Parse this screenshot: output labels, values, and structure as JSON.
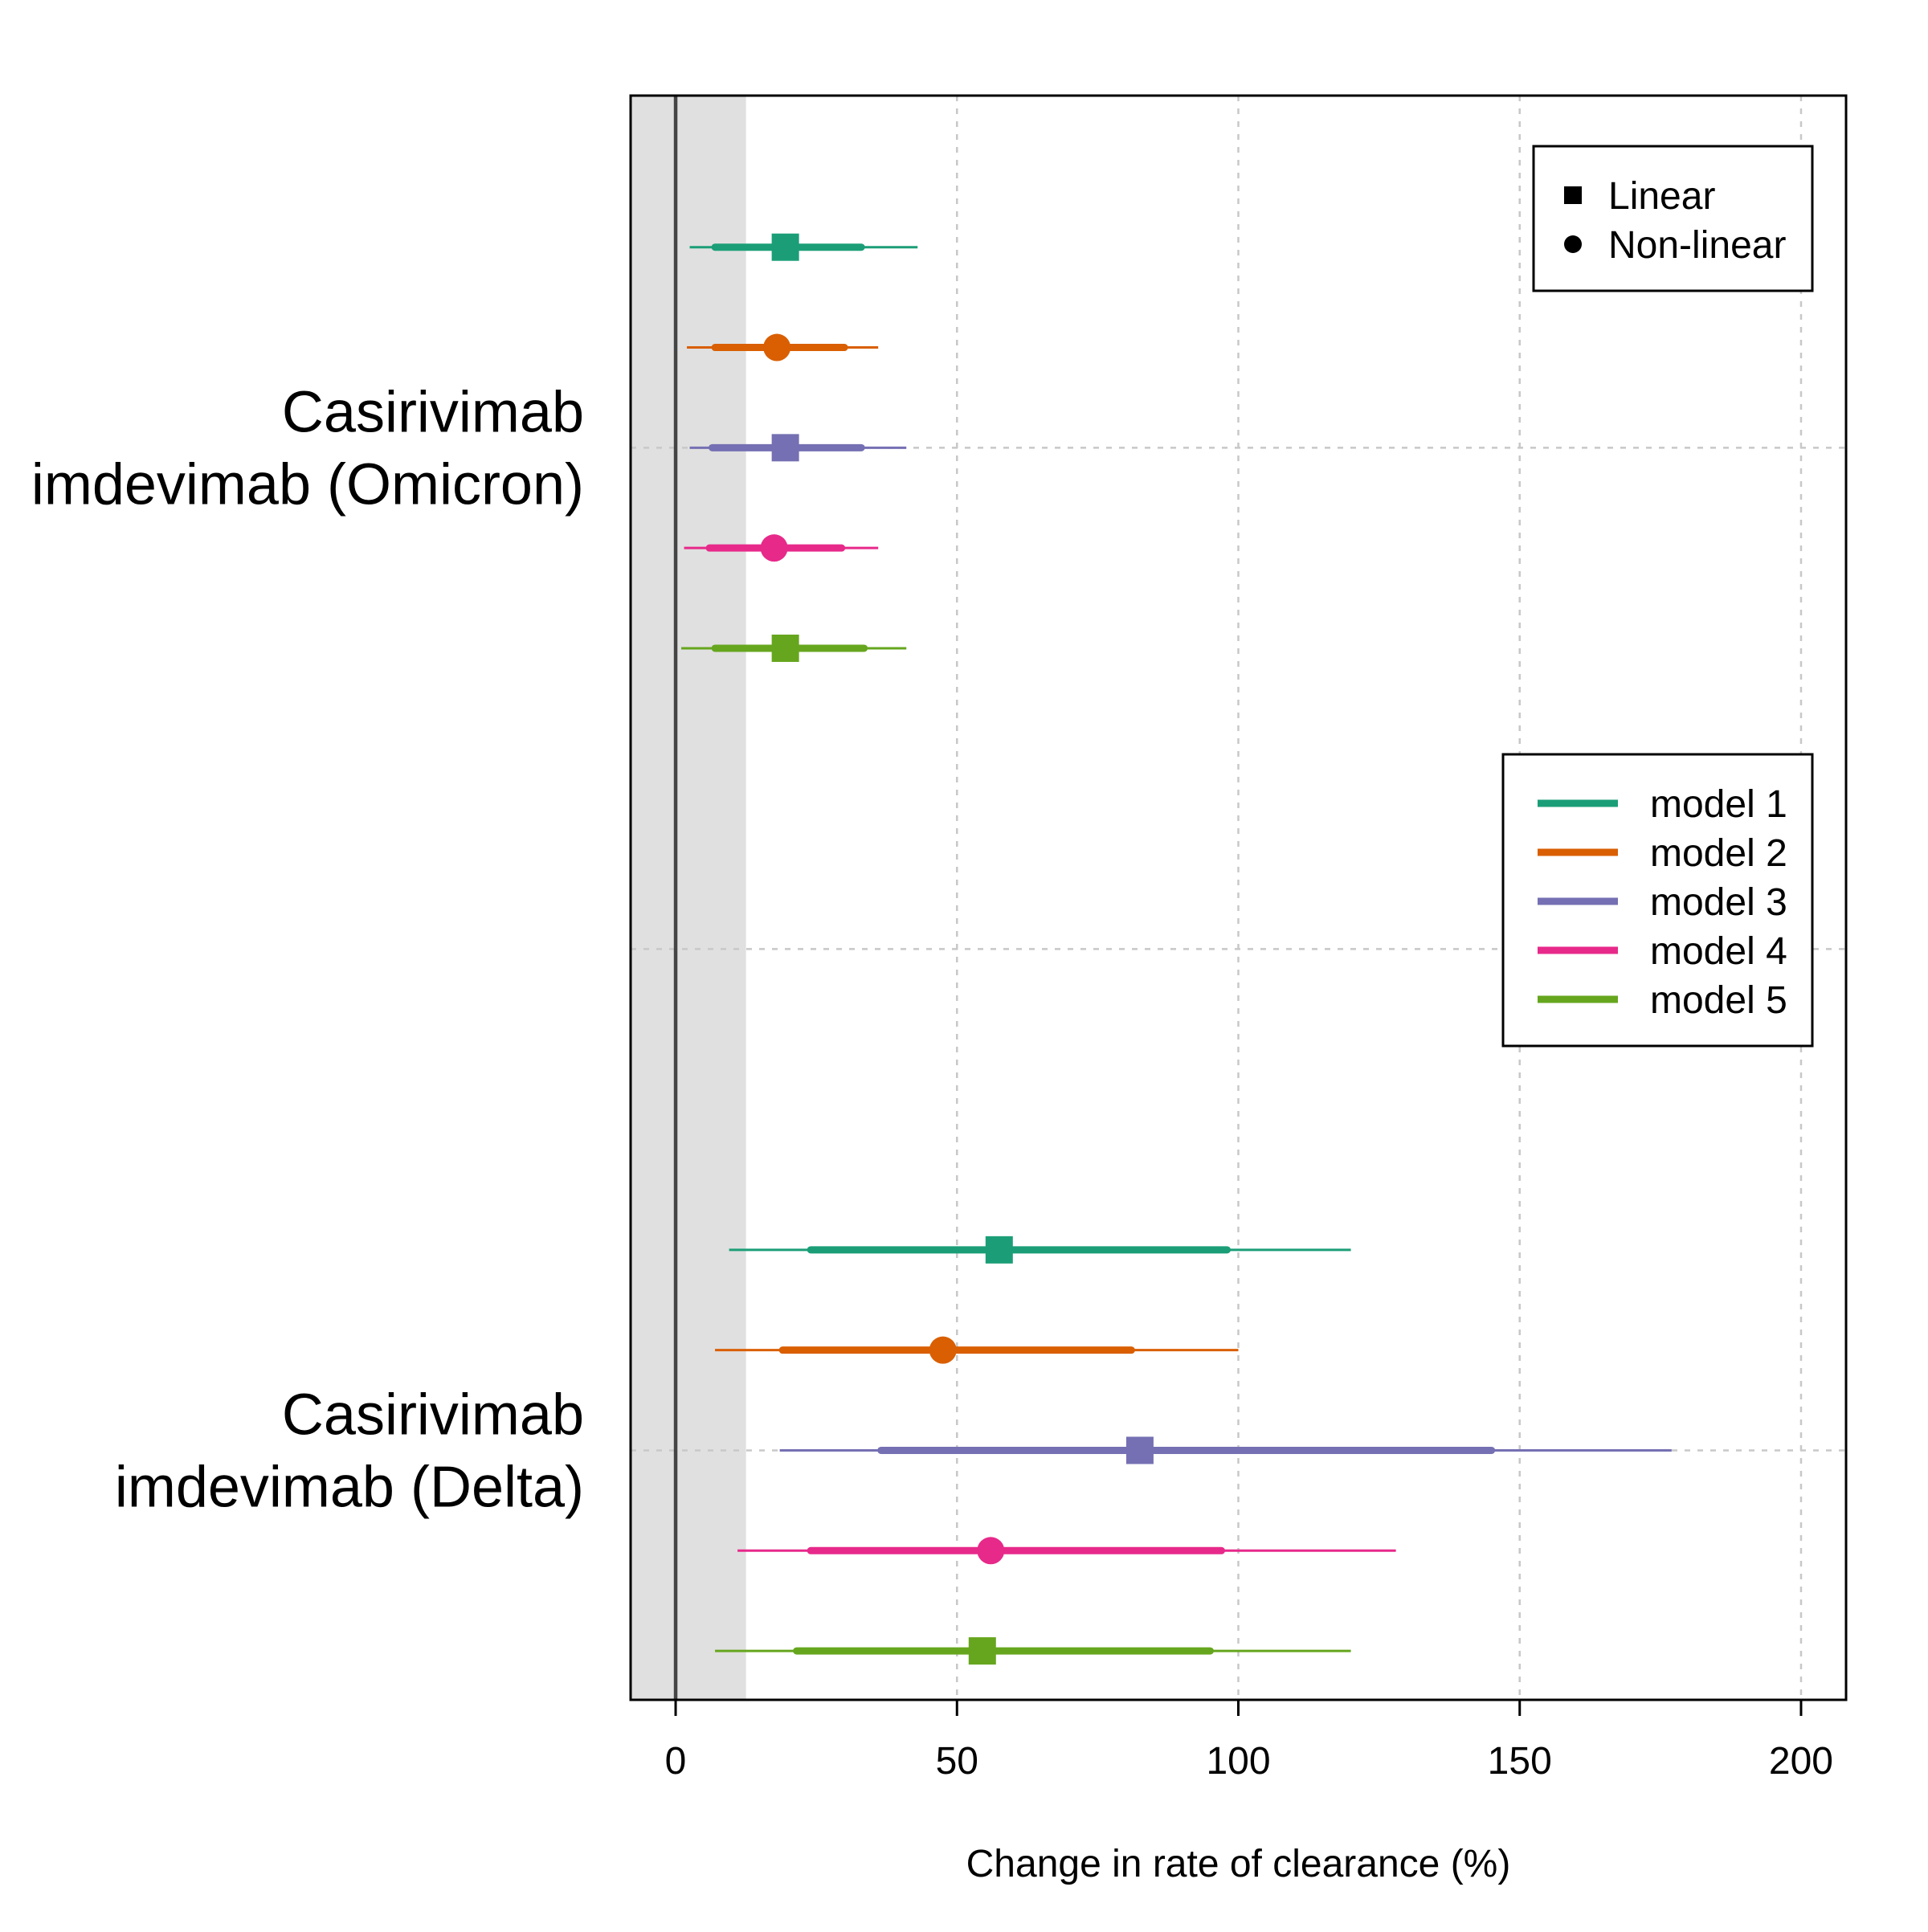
{
  "chart_data": {
    "type": "forest",
    "xlabel": "Change in rate of clearance (%)",
    "xlim": [
      -8,
      208
    ],
    "xticks": [
      0,
      50,
      100,
      150,
      200
    ],
    "xtick_labels": [
      "0",
      "50",
      "100",
      "150",
      "200"
    ],
    "reference_line": 0,
    "shaded_region": [
      -8,
      12.5
    ],
    "shaded_color": "#e0e0e0",
    "grid": true,
    "groups": [
      {
        "label_line1": "Casirivimab",
        "label_line2": "imdevimab (Omicron)"
      },
      {
        "label_line1": "Casirivimab",
        "label_line2": "imdevimab (Delta)"
      }
    ],
    "series": [
      {
        "name": "model 1",
        "color": "#1b9e77"
      },
      {
        "name": "model 2",
        "color": "#d95f02"
      },
      {
        "name": "model 3",
        "color": "#7570b3"
      },
      {
        "name": "model 4",
        "color": "#e7298a"
      },
      {
        "name": "model 5",
        "color": "#66a61e"
      }
    ],
    "estimates": [
      {
        "group": 0,
        "model": "model 1",
        "shape": "square",
        "estimate": 19.5,
        "ci80": [
          7,
          33
        ],
        "ci95": [
          2.5,
          43
        ]
      },
      {
        "group": 0,
        "model": "model 2",
        "shape": "circle",
        "estimate": 18,
        "ci80": [
          7,
          30
        ],
        "ci95": [
          2,
          36
        ]
      },
      {
        "group": 0,
        "model": "model 3",
        "shape": "square",
        "estimate": 19.5,
        "ci80": [
          6.5,
          33
        ],
        "ci95": [
          2.5,
          41
        ]
      },
      {
        "group": 0,
        "model": "model 4",
        "shape": "circle",
        "estimate": 17.5,
        "ci80": [
          6,
          29.5
        ],
        "ci95": [
          1.5,
          36
        ]
      },
      {
        "group": 0,
        "model": "model 5",
        "shape": "square",
        "estimate": 19.5,
        "ci80": [
          7,
          33.5
        ],
        "ci95": [
          1,
          41
        ]
      },
      {
        "group": 1,
        "model": "model 1",
        "shape": "square",
        "estimate": 57.5,
        "ci80": [
          24,
          98
        ],
        "ci95": [
          9.5,
          120
        ]
      },
      {
        "group": 1,
        "model": "model 2",
        "shape": "circle",
        "estimate": 47.5,
        "ci80": [
          19,
          81
        ],
        "ci95": [
          7,
          100
        ]
      },
      {
        "group": 1,
        "model": "model 3",
        "shape": "square",
        "estimate": 82.5,
        "ci80": [
          36.5,
          145
        ],
        "ci95": [
          18.5,
          177
        ]
      },
      {
        "group": 1,
        "model": "model 4",
        "shape": "circle",
        "estimate": 56,
        "ci80": [
          24,
          97
        ],
        "ci95": [
          11,
          128
        ]
      },
      {
        "group": 1,
        "model": "model 5",
        "shape": "square",
        "estimate": 54.5,
        "ci80": [
          21.5,
          95
        ],
        "ci95": [
          7,
          120
        ]
      }
    ],
    "shape_legend": {
      "placement": "top-right",
      "items": [
        {
          "label": "Linear",
          "shape": "square"
        },
        {
          "label": "Non-linear",
          "shape": "circle"
        }
      ]
    },
    "color_legend": {
      "placement": "right"
    }
  }
}
